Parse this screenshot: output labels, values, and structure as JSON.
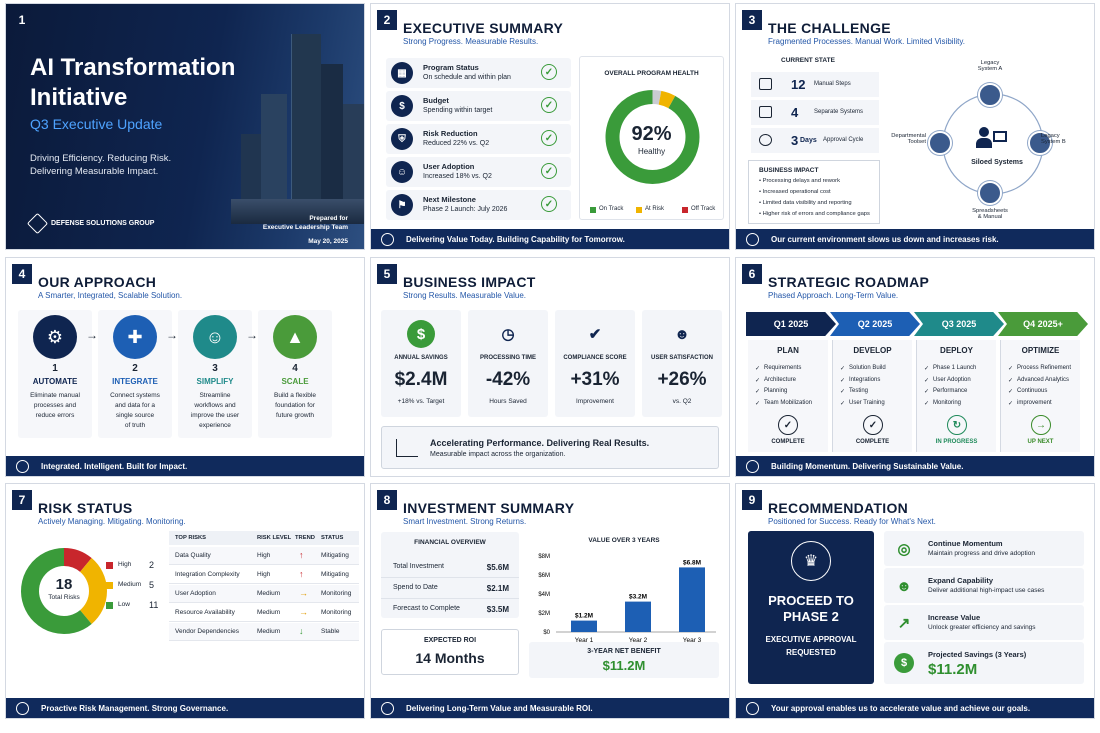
{
  "s1": {
    "num": "1",
    "title1": "AI Transformation",
    "title2": "Initiative",
    "subtitle": "Q3 Executive Update",
    "tag1": "Driving Efficiency. Reducing Risk.",
    "tag2": "Delivering Measurable Impact.",
    "org": "DEFENSE SOLUTIONS GROUP",
    "prepared": "Prepared for",
    "audience": "Executive Leadership Team",
    "date": "May 20, 2025"
  },
  "s2": {
    "num": "2",
    "title": "EXECUTIVE SUMMARY",
    "subtitle": "Strong Progress. Measurable Results.",
    "items": [
      {
        "title": "Program Status",
        "desc": "On schedule and within plan"
      },
      {
        "title": "Budget",
        "desc": "Spending within target"
      },
      {
        "title": "Risk Reduction",
        "desc": "Reduced 22% vs. Q2"
      },
      {
        "title": "User Adoption",
        "desc": "Increased 18% vs. Q2"
      },
      {
        "title": "Next Milestone",
        "desc": "Phase 2 Launch: July 2026"
      }
    ],
    "health_title": "OVERALL PROGRAM HEALTH",
    "health_value": "92%",
    "health_label": "Healthy",
    "health_pct": 92,
    "legend": [
      {
        "label": "On Track",
        "color": "#3a9b3a"
      },
      {
        "label": "At Risk",
        "color": "#f0b400"
      },
      {
        "label": "Off Track",
        "color": "#c8262c"
      }
    ],
    "footer": "Delivering Value Today. Building Capability for Tomorrow."
  },
  "s3": {
    "num": "3",
    "title": "THE CHALLENGE",
    "subtitle": "Fragmented Processes. Manual Work. Limited Visibility.",
    "state_label": "CURRENT STATE",
    "stats": [
      {
        "value": "12",
        "label": "Manual Steps"
      },
      {
        "value": "4",
        "label": "Separate Systems"
      },
      {
        "value": "3",
        "unit": "Days",
        "label": "Approval Cycle"
      }
    ],
    "impact_title": "BUSINESS IMPACT",
    "impacts": [
      "Processing delays and rework",
      "Increased operational cost",
      "Limited data visibility and reporting",
      "Higher risk of errors and compliance gaps"
    ],
    "center": "Siloed Systems",
    "nodes": [
      {
        "l1": "Legacy",
        "l2": "System A"
      },
      {
        "l1": "Legacy",
        "l2": "System B"
      },
      {
        "l1": "Spreadsheets",
        "l2": "& Manual"
      },
      {
        "l1": "Departmental",
        "l2": "Toolset"
      }
    ],
    "footer": "Our current environment slows us down and increases risk."
  },
  "s4": {
    "num": "4",
    "title": "OUR APPROACH",
    "subtitle": "A Smarter, Integrated, Scalable Solution.",
    "steps": [
      {
        "n": "1",
        "name": "AUTOMATE",
        "d1": "Eliminate manual",
        "d2": "processes and",
        "d3": "reduce errors",
        "d4": "",
        "color": "#0f2550"
      },
      {
        "n": "2",
        "name": "INTEGRATE",
        "d1": "Connect systems",
        "d2": "and data for a",
        "d3": "single source",
        "d4": "of truth",
        "color": "#1d5fb4"
      },
      {
        "n": "3",
        "name": "SIMPLIFY",
        "d1": "Streamline",
        "d2": "workflows and",
        "d3": "improve the user",
        "d4": "experience",
        "color": "#1f8a8a"
      },
      {
        "n": "4",
        "name": "SCALE",
        "d1": "Build a flexible",
        "d2": "foundation for",
        "d3": "future growth",
        "d4": "",
        "color": "#4a9b3a"
      }
    ],
    "footer": "Integrated. Intelligent. Built for Impact."
  },
  "s5": {
    "num": "5",
    "title": "BUSINESS IMPACT",
    "subtitle": "Strong Results. Measurable Value.",
    "kpis": [
      {
        "label": "ANNUAL SAVINGS",
        "value": "$2.4M",
        "note": "+18% vs. Target"
      },
      {
        "label": "PROCESSING TIME",
        "value": "-42%",
        "note": "Hours Saved"
      },
      {
        "label": "COMPLIANCE SCORE",
        "value": "+31%",
        "note": "Improvement"
      },
      {
        "label": "USER SATISFACTION",
        "value": "+26%",
        "note": "vs. Q2"
      }
    ],
    "banner_title": "Accelerating Performance. Delivering Real Results.",
    "banner_sub": "Measurable impact across the organization."
  },
  "s6": {
    "num": "6",
    "title": "STRATEGIC ROADMAP",
    "subtitle": "Phased Approach. Long-Term Value.",
    "phases": [
      {
        "q": "Q1 2025",
        "name": "PLAN",
        "items": [
          "Requirements",
          "Architecture",
          "Planning",
          "Team Mobilization"
        ],
        "status": "COMPLETE",
        "color": "#0f2550",
        "scolor": "#1a2433"
      },
      {
        "q": "Q2 2025",
        "name": "DEVELOP",
        "items": [
          "Solution Build",
          "Integrations",
          "Testing",
          "User Training"
        ],
        "status": "COMPLETE",
        "color": "#1d5fb4",
        "scolor": "#1a2433"
      },
      {
        "q": "Q3 2025",
        "name": "DEPLOY",
        "items": [
          "Phase 1 Launch",
          "User Adoption",
          "Performance",
          "Monitoring"
        ],
        "status": "IN PROGRESS",
        "color": "#1f8a8a",
        "scolor": "#1f8a5a"
      },
      {
        "q": "Q4 2025+",
        "name": "OPTIMIZE",
        "items": [
          "Process Refinement",
          "Advanced Analytics",
          "Continuous",
          "improvement"
        ],
        "status": "UP NEXT",
        "color": "#4a9b3a",
        "scolor": "#3a8b2a"
      }
    ],
    "footer": "Building Momentum. Delivering Sustainable Value."
  },
  "s7": {
    "num": "7",
    "title": "RISK STATUS",
    "subtitle": "Actively Managing. Mitigating. Monitoring.",
    "total": "18",
    "total_label": "Total Risks",
    "levels": [
      {
        "label": "High",
        "count": "2",
        "value": 2,
        "color": "#c8262c"
      },
      {
        "label": "Medium",
        "count": "5",
        "value": 5,
        "color": "#f0b400"
      },
      {
        "label": "Low",
        "count": "11",
        "value": 11,
        "color": "#3a9b3a"
      }
    ],
    "headers": [
      "TOP RISKS",
      "RISK LEVEL",
      "TREND",
      "STATUS"
    ],
    "rows": [
      {
        "risk": "Data Quality",
        "level": "High",
        "trend": "↑",
        "tcolor": "#c8262c",
        "status": "Mitigating"
      },
      {
        "risk": "Integration Complexity",
        "level": "High",
        "trend": "↑",
        "tcolor": "#c8262c",
        "status": "Mitigating"
      },
      {
        "risk": "User Adoption",
        "level": "Medium",
        "trend": "→",
        "tcolor": "#e09a00",
        "status": "Monitoring"
      },
      {
        "risk": "Resource Availability",
        "level": "Medium",
        "trend": "→",
        "tcolor": "#e09a00",
        "status": "Monitoring"
      },
      {
        "risk": "Vendor Dependencies",
        "level": "Medium",
        "trend": "↓",
        "tcolor": "#3a9b3a",
        "status": "Stable"
      }
    ],
    "footer": "Proactive Risk Management. Strong Governance."
  },
  "s8": {
    "num": "8",
    "title": "INVESTMENT SUMMARY",
    "subtitle": "Smart Investment. Strong Returns.",
    "fin_title": "FINANCIAL OVERVIEW",
    "fin": [
      {
        "label": "Total Investment",
        "value": "$5.6M"
      },
      {
        "label": "Spend to Date",
        "value": "$2.1M"
      },
      {
        "label": "Forecast to Complete",
        "value": "$3.5M"
      }
    ],
    "roi_label": "EXPECTED ROI",
    "roi_value": "14  Months",
    "net_label": "3-YEAR NET BENEFIT",
    "net_value": "$11.2M",
    "footer": "Delivering Long-Term Value and Measurable ROI."
  },
  "s9": {
    "num": "9",
    "title": "RECOMMENDATION",
    "subtitle": "Positioned for Success. Ready for What's Next.",
    "proceed1": "PROCEED TO",
    "proceed2": "PHASE 2",
    "approval1": "EXECUTIVE APPROVAL",
    "approval2": "REQUESTED",
    "items": [
      {
        "title": "Continue Momentum",
        "desc": "Maintain progress and drive adoption"
      },
      {
        "title": "Expand Capability",
        "desc": "Deliver additional high-impact use cases"
      },
      {
        "title": "Increase Value",
        "desc": "Unlock greater efficiency and savings"
      }
    ],
    "savings_label": "Projected Savings (3 Years)",
    "savings_value": "$11.2M",
    "footer": "Your approval enables us to accelerate value and achieve our goals."
  },
  "chart_data": [
    {
      "type": "pie",
      "title": "OVERALL PROGRAM HEALTH",
      "labels": [
        "On Track",
        "At Risk",
        "Off Track"
      ],
      "values": [
        92,
        5,
        3
      ]
    },
    {
      "type": "pie",
      "title": "",
      "labels": [
        "High",
        "Medium",
        "Low"
      ],
      "values": [
        2,
        5,
        11
      ]
    },
    {
      "type": "bar",
      "title": "VALUE OVER 3 YEARS",
      "categories": [
        "Year 1",
        "Year 2",
        "Year 3"
      ],
      "values": [
        1.2,
        3.2,
        6.8
      ],
      "labels": [
        "$1.2M",
        "$3.2M",
        "$6.8M"
      ],
      "yticks": [
        "$0",
        "$2M",
        "$4M",
        "$6M",
        "$8M"
      ],
      "ylim": [
        0,
        8
      ]
    }
  ]
}
